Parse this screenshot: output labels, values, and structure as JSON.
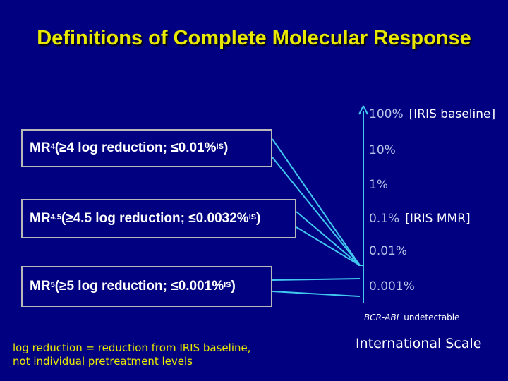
{
  "title": "Definitions of Complete Molecular Response",
  "boxes": [
    {
      "prefix": "MR",
      "sup": "4",
      "text": " (≥4 log reduction; ≤0.01%",
      "sup2": "IS",
      "suffix": ")"
    },
    {
      "prefix": "MR",
      "sup": "4.5",
      "text": " (≥4.5 log reduction; ≤0.0032%",
      "sup2": "IS",
      "suffix": ")"
    },
    {
      "prefix": "MR",
      "sup": "5",
      "text": " (≥5 log reduction; ≤0.001%",
      "sup2": "IS",
      "suffix": ")"
    }
  ],
  "scale": {
    "ticks": [
      {
        "value": "100%",
        "note": "[IRIS baseline]"
      },
      {
        "value": "10%",
        "note": ""
      },
      {
        "value": "1%",
        "note": ""
      },
      {
        "value": "0.1%",
        "note": "[IRIS MMR]"
      },
      {
        "value": "0.01%",
        "note": ""
      },
      {
        "value": "0.001%",
        "note": ""
      }
    ],
    "undetectable_gene": "BCR-ABL",
    "undetectable_text": " undetectable",
    "label": "International Scale"
  },
  "footnote": {
    "line1": "log reduction = reduction from IRIS baseline,",
    "line2": "not individual pretreatment levels"
  },
  "colors": {
    "background": "#000080",
    "title": "#e8e800",
    "connector": "#40c8f0",
    "box_border": "#b8b8b8"
  }
}
